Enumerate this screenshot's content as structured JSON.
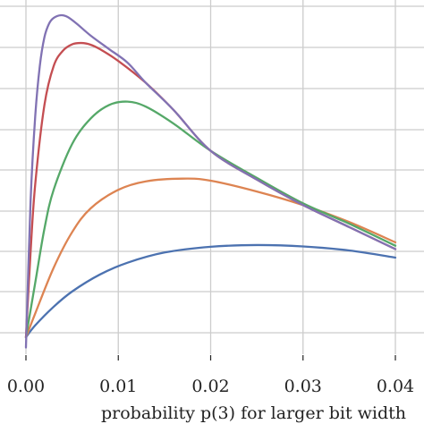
{
  "chart_data": {
    "type": "line",
    "title": "",
    "xlabel": "probability p(3) for larger bit width",
    "ylabel": "",
    "xlim": [
      -0.002,
      0.0415
    ],
    "ylim": [
      0,
      1.0
    ],
    "grid": true,
    "legend": "none",
    "x_ticks": [
      "0.00",
      "0.01",
      "0.02",
      "0.03",
      "0.04"
    ],
    "x_tick_values": [
      0.0,
      0.01,
      0.02,
      0.03,
      0.04
    ],
    "y_tick_values": [
      0.05,
      0.15,
      0.25,
      0.35,
      0.45,
      0.55,
      0.65,
      0.75,
      0.85,
      0.95
    ],
    "series": [
      {
        "color": "#4C72B0",
        "points": [
          [
            0.0,
            0.05
          ],
          [
            0.001,
            0.085
          ],
          [
            0.003,
            0.14
          ],
          [
            0.005,
            0.185
          ],
          [
            0.008,
            0.235
          ],
          [
            0.011,
            0.27
          ],
          [
            0.015,
            0.3
          ],
          [
            0.02,
            0.317
          ],
          [
            0.025,
            0.322
          ],
          [
            0.03,
            0.318
          ],
          [
            0.035,
            0.306
          ],
          [
            0.04,
            0.285
          ]
        ]
      },
      {
        "color": "#DD8452",
        "points": [
          [
            0.0,
            0.05
          ],
          [
            0.001,
            0.12
          ],
          [
            0.003,
            0.255
          ],
          [
            0.005,
            0.36
          ],
          [
            0.007,
            0.43
          ],
          [
            0.01,
            0.485
          ],
          [
            0.013,
            0.51
          ],
          [
            0.017,
            0.518
          ],
          [
            0.02,
            0.512
          ],
          [
            0.025,
            0.48
          ],
          [
            0.03,
            0.44
          ],
          [
            0.035,
            0.39
          ],
          [
            0.04,
            0.33
          ]
        ]
      },
      {
        "color": "#55A868",
        "points": [
          [
            0.0,
            0.05
          ],
          [
            0.001,
            0.21
          ],
          [
            0.002,
            0.37
          ],
          [
            0.003,
            0.485
          ],
          [
            0.005,
            0.62
          ],
          [
            0.007,
            0.695
          ],
          [
            0.009,
            0.735
          ],
          [
            0.011,
            0.745
          ],
          [
            0.013,
            0.73
          ],
          [
            0.016,
            0.68
          ],
          [
            0.02,
            0.6
          ],
          [
            0.025,
            0.52
          ],
          [
            0.03,
            0.445
          ],
          [
            0.035,
            0.385
          ],
          [
            0.04,
            0.32
          ]
        ]
      },
      {
        "color": "#C44E52",
        "points": [
          [
            0.0,
            0.05
          ],
          [
            0.0005,
            0.3
          ],
          [
            0.001,
            0.5
          ],
          [
            0.002,
            0.735
          ],
          [
            0.003,
            0.85
          ],
          [
            0.004,
            0.895
          ],
          [
            0.005,
            0.914
          ],
          [
            0.006,
            0.918
          ],
          [
            0.007,
            0.913
          ],
          [
            0.008,
            0.9
          ],
          [
            0.01,
            0.865
          ],
          [
            0.013,
            0.8
          ],
          [
            0.016,
            0.72
          ],
          [
            0.02,
            0.6
          ],
          [
            0.025,
            0.515
          ],
          [
            0.03,
            0.44
          ],
          [
            0.035,
            0.375
          ],
          [
            0.04,
            0.31
          ]
        ]
      },
      {
        "color": "#8172B3",
        "points": [
          [
            0.0,
            0.02
          ],
          [
            0.0005,
            0.45
          ],
          [
            0.001,
            0.7
          ],
          [
            0.0015,
            0.85
          ],
          [
            0.002,
            0.935
          ],
          [
            0.0025,
            0.975
          ],
          [
            0.003,
            0.992
          ],
          [
            0.0038,
            1.0
          ],
          [
            0.0045,
            0.995
          ],
          [
            0.0055,
            0.975
          ],
          [
            0.007,
            0.94
          ],
          [
            0.009,
            0.9
          ],
          [
            0.011,
            0.86
          ],
          [
            0.013,
            0.8
          ],
          [
            0.016,
            0.72
          ],
          [
            0.02,
            0.6
          ],
          [
            0.025,
            0.515
          ],
          [
            0.03,
            0.44
          ],
          [
            0.035,
            0.375
          ],
          [
            0.04,
            0.31
          ]
        ]
      }
    ]
  }
}
